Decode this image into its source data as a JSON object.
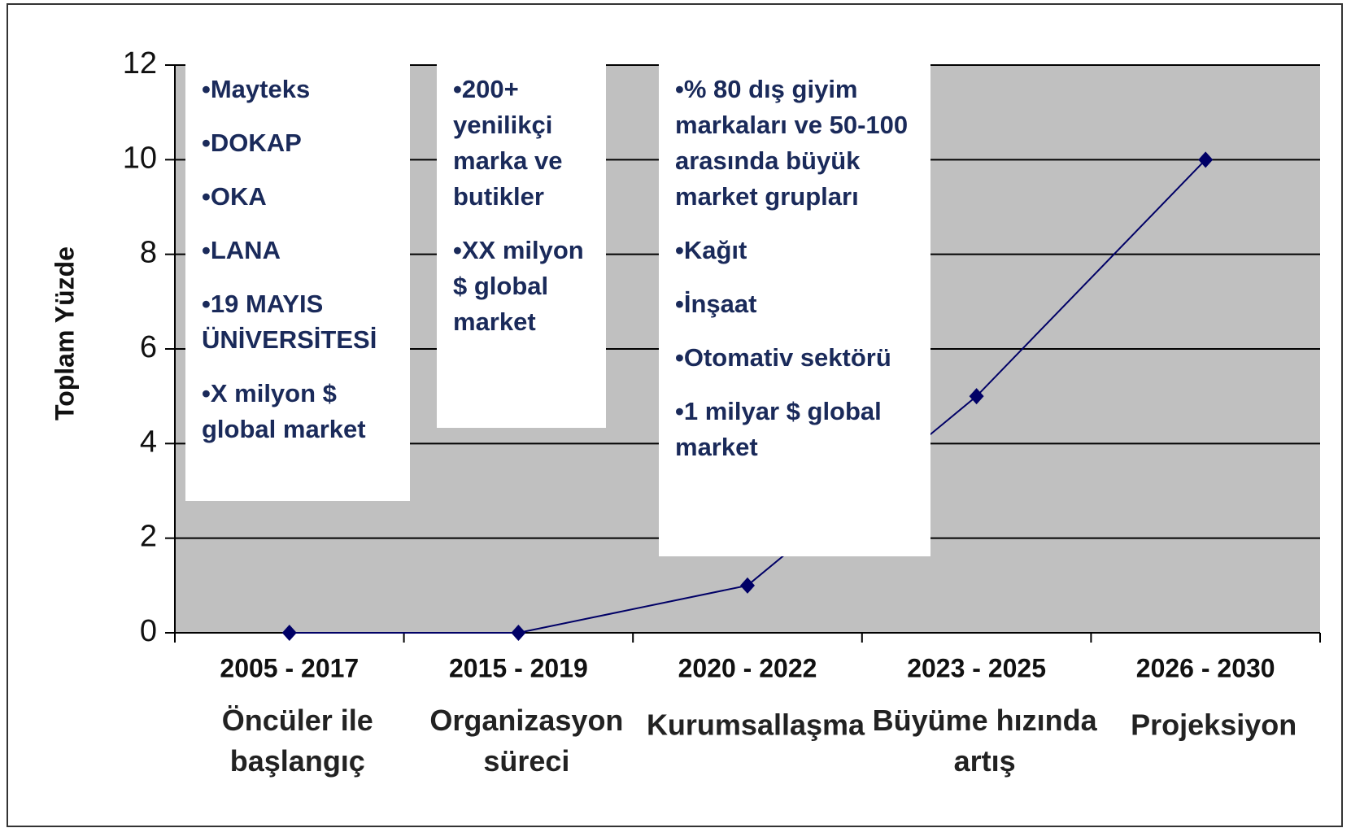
{
  "chart_data": {
    "type": "line",
    "y_label": "Toplam Yüzde",
    "categories": [
      "2005 - 2017",
      "2015 - 2019",
      "2020 - 2022",
      "2023 - 2025",
      "2026 - 2030"
    ],
    "phases": [
      "Öncüler ile başlangıç",
      "Organizasyon süreci",
      "Kurumsallaşma",
      "Büyüme hızında artış",
      "Projeksiyon"
    ],
    "series": [
      {
        "color": "#000066",
        "values": [
          0,
          0,
          1,
          5,
          10
        ]
      }
    ],
    "ylim": [
      0,
      12
    ],
    "yticks": [
      0,
      2,
      4,
      6,
      8,
      10,
      12
    ],
    "grid": true,
    "annotations": [
      {
        "items": [
          "•Mayteks",
          "•DOKAP",
          "•OKA",
          "•LANA",
          "•19 MAYIS ÜNİVERSİTESİ",
          "•X milyon $ global market"
        ]
      },
      {
        "items": [
          "•200+ yenilikçi marka ve butikler",
          "•XX milyon $ global market"
        ]
      },
      {
        "items": [
          "•% 80 dış giyim markaları ve 50-100 arasında büyük market grupları",
          "•Kağıt",
          "•İnşaat",
          "•Otomativ sektörü",
          "•1 milyar $ global market"
        ]
      }
    ]
  }
}
